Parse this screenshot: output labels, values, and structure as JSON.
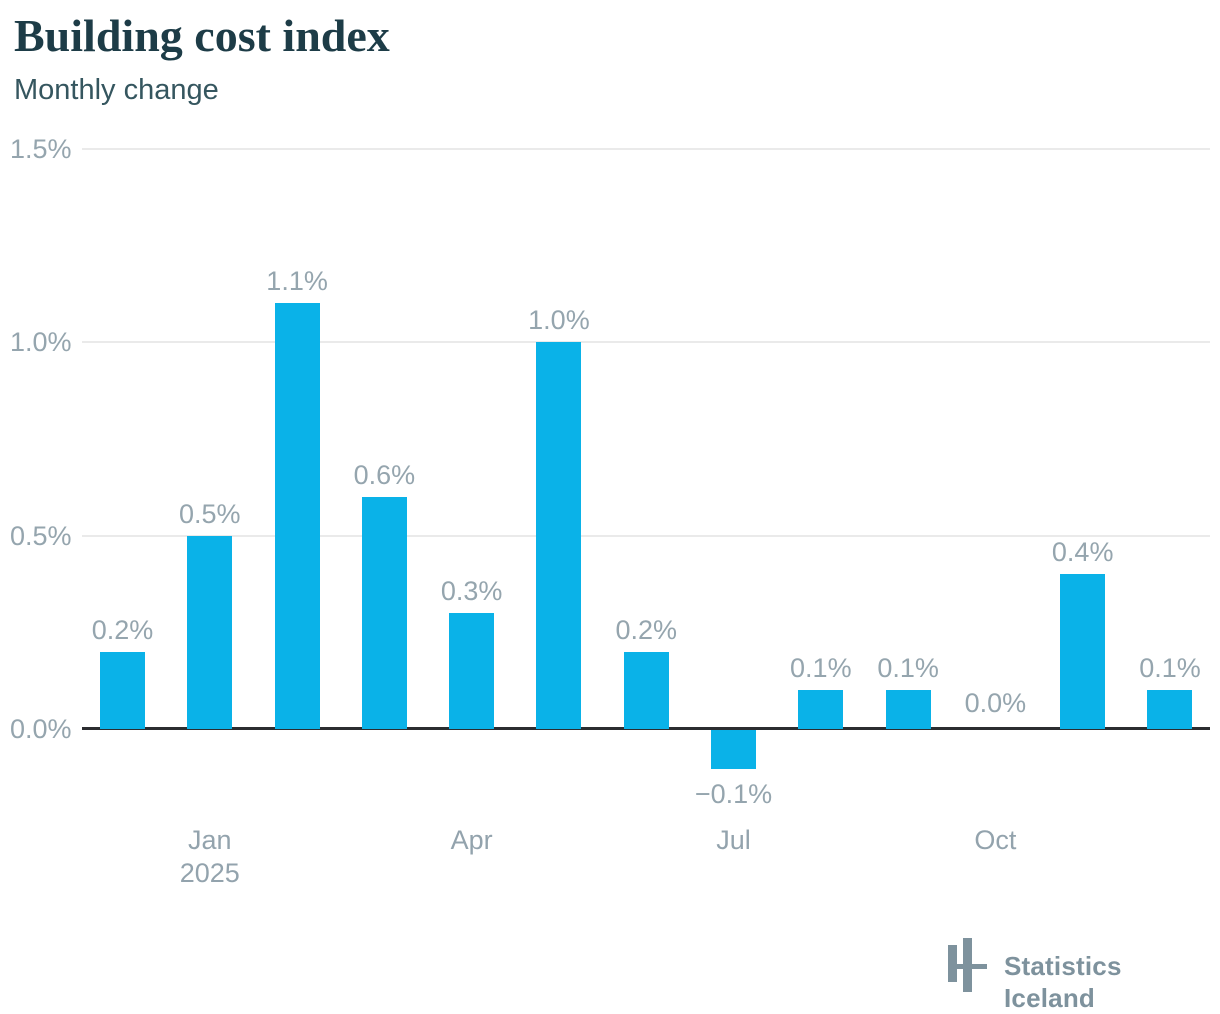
{
  "header": {
    "title": "Building cost index",
    "subtitle": "Monthly change"
  },
  "chart_data": {
    "type": "bar",
    "title": "Building cost index",
    "subtitle": "Monthly change",
    "unit": "%",
    "values": [
      0.2,
      0.5,
      1.1,
      0.6,
      0.3,
      1.0,
      0.2,
      -0.1,
      0.1,
      0.1,
      0.0,
      0.4,
      0.1
    ],
    "data_labels": [
      "0.2%",
      "0.5%",
      "1.1%",
      "0.6%",
      "0.3%",
      "1.0%",
      "0.2%",
      "−0.1%",
      "0.1%",
      "0.1%",
      "0.0%",
      "0.4%",
      "0.1%"
    ],
    "y_axis": {
      "ticks": [
        {
          "value": 0.0,
          "label": "0.0%"
        },
        {
          "value": 0.5,
          "label": "0.5%"
        },
        {
          "value": 1.0,
          "label": "1.0%"
        },
        {
          "value": 1.5,
          "label": "1.5%"
        }
      ],
      "range": [
        -0.2,
        1.5
      ]
    },
    "x_axis": {
      "ticks": [
        {
          "index": 1,
          "lines": [
            "Jan",
            "2025"
          ]
        },
        {
          "index": 4,
          "lines": [
            "Apr"
          ]
        },
        {
          "index": 7,
          "lines": [
            "Jul"
          ]
        },
        {
          "index": 10,
          "lines": [
            "Oct"
          ]
        }
      ]
    },
    "grid": "horizontal",
    "legend": "none",
    "bar_color": "#0ab2e8",
    "axis_line_color": "#2b2d30",
    "gridline_color": "#eaeaea",
    "label_color": "#95a5ae"
  },
  "footer": {
    "brand": "Statistics Iceland"
  }
}
